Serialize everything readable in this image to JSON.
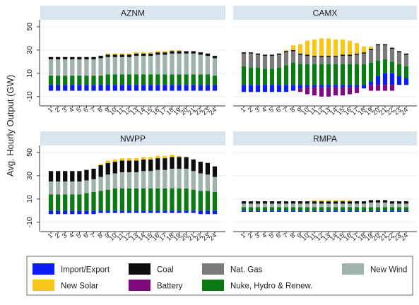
{
  "chart_data": {
    "type": "bar",
    "stacked": true,
    "ylabel": "Avg. Hourly Output (GW)",
    "yticks": [
      -10,
      10,
      30,
      50
    ],
    "ylim": [
      -18,
      56
    ],
    "categories": [
      "1",
      "2",
      "3",
      "4",
      "5",
      "6",
      "7",
      "8",
      "9",
      "10",
      "11",
      "12",
      "13",
      "14",
      "15",
      "16",
      "17",
      "18",
      "19",
      "20",
      "21",
      "22",
      "23",
      "24"
    ],
    "colors": {
      "Import/Export": "#0c1cf5",
      "New Solar": "#f7c81b",
      "Coal": "#0d0d0d",
      "Battery": "#7e0a7e",
      "Nat. Gas": "#7a7a7a",
      "Nuke, Hydro & Renew.": "#0c7a12",
      "New Wind": "#9fb2ab"
    },
    "legend": {
      "placement": "bottom",
      "entries": [
        "Import/Export",
        "Coal",
        "Nat. Gas",
        "New Wind",
        "New Solar",
        "Battery",
        "Nuke, Hydro & Renew."
      ]
    },
    "panels": [
      {
        "title": "AZNM",
        "series": [
          {
            "name": "Import/Export",
            "values": [
              -5,
              -5,
              -5,
              -5,
              -5,
              -5,
              -5,
              -5,
              -5,
              -5,
              -5,
              -5,
              -5,
              -5,
              -5,
              -5,
              -5,
              -5,
              -5,
              -5,
              -5,
              -5,
              -5,
              -5
            ]
          },
          {
            "name": "Nuke, Hydro & Renew.",
            "values": [
              8,
              8,
              8,
              8,
              8,
              8,
              8,
              8,
              9,
              9,
              9,
              9,
              9,
              9,
              9,
              9,
              9,
              9,
              9,
              9,
              9,
              9,
              9,
              8
            ]
          },
          {
            "name": "New Wind",
            "values": [
              14,
              14,
              14,
              14,
              14,
              14,
              14,
              15,
              15,
              15,
              15,
              15,
              16,
              16,
              16,
              17,
              17,
              18,
              18,
              18,
              18,
              17,
              16,
              15
            ]
          },
          {
            "name": "Coal",
            "values": [
              2,
              2,
              2,
              2,
              2,
              2,
              2,
              2,
              2,
              2,
              2,
              2,
              2,
              2,
              2,
              2,
              2,
              2,
              2,
              2,
              2,
              2,
              2,
              2
            ]
          },
          {
            "name": "New Solar",
            "values": [
              0,
              0,
              0,
              0,
              0,
              0,
              0,
              0,
              1,
              1,
              1,
              1,
              1,
              1,
              1,
              1,
              1,
              1,
              1,
              0,
              0,
              0,
              0,
              0
            ]
          }
        ]
      },
      {
        "title": "CAMX",
        "series": [
          {
            "name": "Import/Export",
            "values": [
              -6,
              -6,
              -6,
              -6,
              -6,
              -6,
              -6,
              -5,
              -3,
              -2,
              -2,
              -2,
              -2,
              -2,
              -2,
              -2,
              -2,
              -3,
              3,
              8,
              10,
              10,
              8,
              6
            ]
          },
          {
            "name": "Battery",
            "values": [
              0,
              0,
              0,
              0,
              0,
              0,
              0,
              0,
              -3,
              -6,
              -7,
              -8,
              -8,
              -7,
              -7,
              -6,
              -5,
              0,
              -5,
              -5,
              -5,
              -5,
              0,
              0
            ]
          },
          {
            "name": "Nuke, Hydro & Renew.",
            "values": [
              16,
              15,
              15,
              14,
              14,
              15,
              17,
              19,
              18,
              18,
              18,
              18,
              18,
              18,
              18,
              18,
              18,
              18,
              16,
              13,
              12,
              10,
              10,
              10
            ]
          },
          {
            "name": "Nat. Gas",
            "values": [
              11,
              12,
              11,
              11,
              11,
              11,
              11,
              10,
              8,
              7,
              6,
              6,
              6,
              6,
              7,
              7,
              8,
              9,
              11,
              13,
              12,
              11,
              10,
              10
            ]
          },
          {
            "name": "New Wind",
            "values": [
              0,
              0,
              0,
              0,
              0,
              0,
              0,
              0,
              0,
              0,
              0,
              0,
              0,
              0,
              0,
              0,
              0,
              0,
              0,
              0,
              0,
              0,
              0,
              0
            ]
          },
          {
            "name": "Coal",
            "values": [
              1,
              1,
              1,
              1,
              1,
              1,
              1,
              1,
              1,
              1,
              1,
              1,
              1,
              1,
              1,
              1,
              1,
              1,
              1,
              1,
              1,
              1,
              1,
              1
            ]
          },
          {
            "name": "New Solar",
            "values": [
              0,
              0,
              0,
              0,
              0,
              0,
              1,
              4,
              8,
              12,
              14,
              15,
              15,
              14,
              13,
              12,
              9,
              5,
              2,
              0,
              0,
              0,
              0,
              0
            ]
          }
        ]
      },
      {
        "title": "NWPP",
        "series": [
          {
            "name": "Import/Export",
            "values": [
              -3,
              -3,
              -3,
              -3,
              -3,
              -3,
              -3,
              -2,
              -2,
              -2,
              -2,
              -2,
              -2,
              -2,
              -2,
              -2,
              -2,
              -2,
              -2,
              -2,
              -2,
              -3,
              -3,
              -3
            ]
          },
          {
            "name": "Nuke, Hydro & Renew.",
            "values": [
              14,
              14,
              14,
              14,
              14,
              15,
              16,
              17,
              18,
              19,
              19,
              19,
              19,
              19,
              19,
              19,
              19,
              19,
              19,
              19,
              18,
              17,
              17,
              16
            ]
          },
          {
            "name": "New Wind",
            "values": [
              11,
              11,
              11,
              11,
              11,
              11,
              11,
              12,
              13,
              13,
              14,
              14,
              14,
              15,
              15,
              16,
              16,
              17,
              17,
              17,
              16,
              15,
              14,
              13
            ]
          },
          {
            "name": "Coal",
            "values": [
              9,
              9,
              9,
              9,
              9,
              9,
              9,
              10,
              10,
              10,
              10,
              10,
              10,
              10,
              10,
              10,
              10,
              10,
              10,
              10,
              10,
              10,
              10,
              9
            ]
          },
          {
            "name": "New Solar",
            "values": [
              0,
              0,
              0,
              0,
              0,
              0,
              0,
              1,
              2,
              2,
              2,
              2,
              2,
              2,
              2,
              2,
              2,
              2,
              1,
              0,
              0,
              0,
              0,
              0
            ]
          }
        ]
      },
      {
        "title": "RMPA",
        "series": [
          {
            "name": "Import/Export",
            "values": [
              -1,
              -1,
              -1,
              -1,
              -1,
              -1,
              -1,
              -1,
              -1,
              -1,
              -1,
              -1,
              -1,
              -1,
              -1,
              -1,
              -1,
              -1,
              -1,
              -1,
              -1,
              -1,
              -1,
              -1
            ]
          },
          {
            "name": "Nuke, Hydro & Renew.",
            "values": [
              3,
              3,
              3,
              3,
              3,
              3,
              3,
              3,
              3,
              3,
              3,
              3,
              3,
              3,
              3,
              3,
              3,
              3,
              3,
              3,
              3,
              3,
              3,
              3
            ]
          },
          {
            "name": "New Wind",
            "values": [
              3,
              3,
              3,
              3,
              3,
              3,
              3,
              3,
              3,
              3,
              3,
              3,
              3,
              3,
              3,
              3,
              3,
              3,
              4,
              4,
              4,
              3,
              3,
              3
            ]
          },
          {
            "name": "Coal",
            "values": [
              2,
              2,
              2,
              2,
              2,
              2,
              2,
              2,
              2,
              2,
              2,
              2,
              2,
              2,
              2,
              2,
              2,
              2,
              2,
              2,
              2,
              2,
              2,
              2
            ]
          },
          {
            "name": "New Solar",
            "values": [
              0,
              0,
              0,
              0,
              0,
              0,
              0,
              0,
              0,
              0,
              1,
              1,
              1,
              1,
              1,
              1,
              0,
              0,
              0,
              0,
              0,
              0,
              0,
              0
            ]
          }
        ]
      }
    ]
  }
}
